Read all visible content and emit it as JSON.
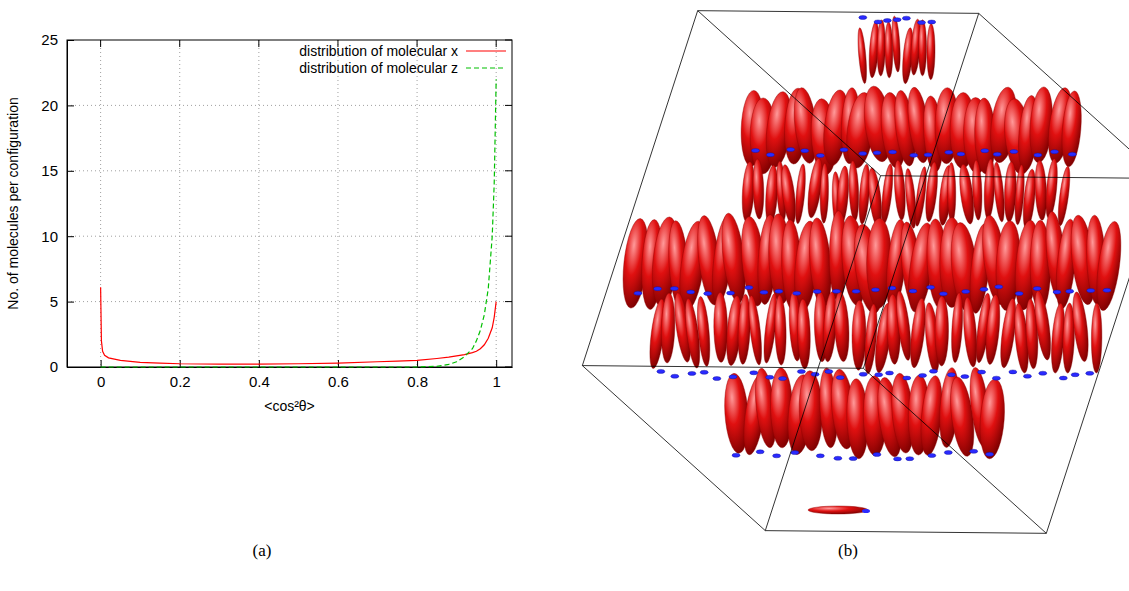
{
  "chart_data": {
    "type": "line",
    "x_label": "<cos²θ>",
    "y_label": "No. of molecules per configuration",
    "xlim": [
      -0.085,
      1.04
    ],
    "xticks": [
      0,
      0.2,
      0.4,
      0.6,
      0.8,
      1
    ],
    "ylim": [
      0,
      25
    ],
    "yticks": [
      0,
      5,
      10,
      15,
      20,
      25
    ],
    "grid": true,
    "legend": "top-right",
    "x": [
      0,
      0.002,
      0.005,
      0.01,
      0.02,
      0.05,
      0.1,
      0.15,
      0.2,
      0.3,
      0.4,
      0.5,
      0.6,
      0.7,
      0.75,
      0.8,
      0.85,
      0.88,
      0.9,
      0.92,
      0.94,
      0.95,
      0.96,
      0.97,
      0.98,
      0.99,
      0.995,
      1
    ],
    "series": [
      {
        "name": "distribution of molecular x",
        "color": "#ff0000",
        "line_style": "solid",
        "values": [
          6.1,
          2.0,
          1.2,
          0.9,
          0.7,
          0.5,
          0.35,
          0.3,
          0.25,
          0.22,
          0.22,
          0.25,
          0.3,
          0.4,
          0.45,
          0.5,
          0.65,
          0.75,
          0.85,
          0.95,
          1.1,
          1.2,
          1.4,
          1.7,
          2.2,
          3.0,
          3.8,
          5.0
        ]
      },
      {
        "name": "distribution of molecular z",
        "color": "#00c000",
        "line_style": "dashed",
        "values": [
          0,
          0,
          0,
          0,
          0,
          0,
          0,
          0,
          0,
          0,
          0,
          0,
          0,
          0,
          0,
          0,
          0.05,
          0.2,
          0.4,
          0.8,
          1.4,
          2.0,
          2.8,
          4.0,
          6.0,
          10.0,
          14.0,
          22.0
        ]
      }
    ]
  },
  "panels": [
    {
      "label": "(a)"
    },
    {
      "label": "(b)"
    }
  ]
}
